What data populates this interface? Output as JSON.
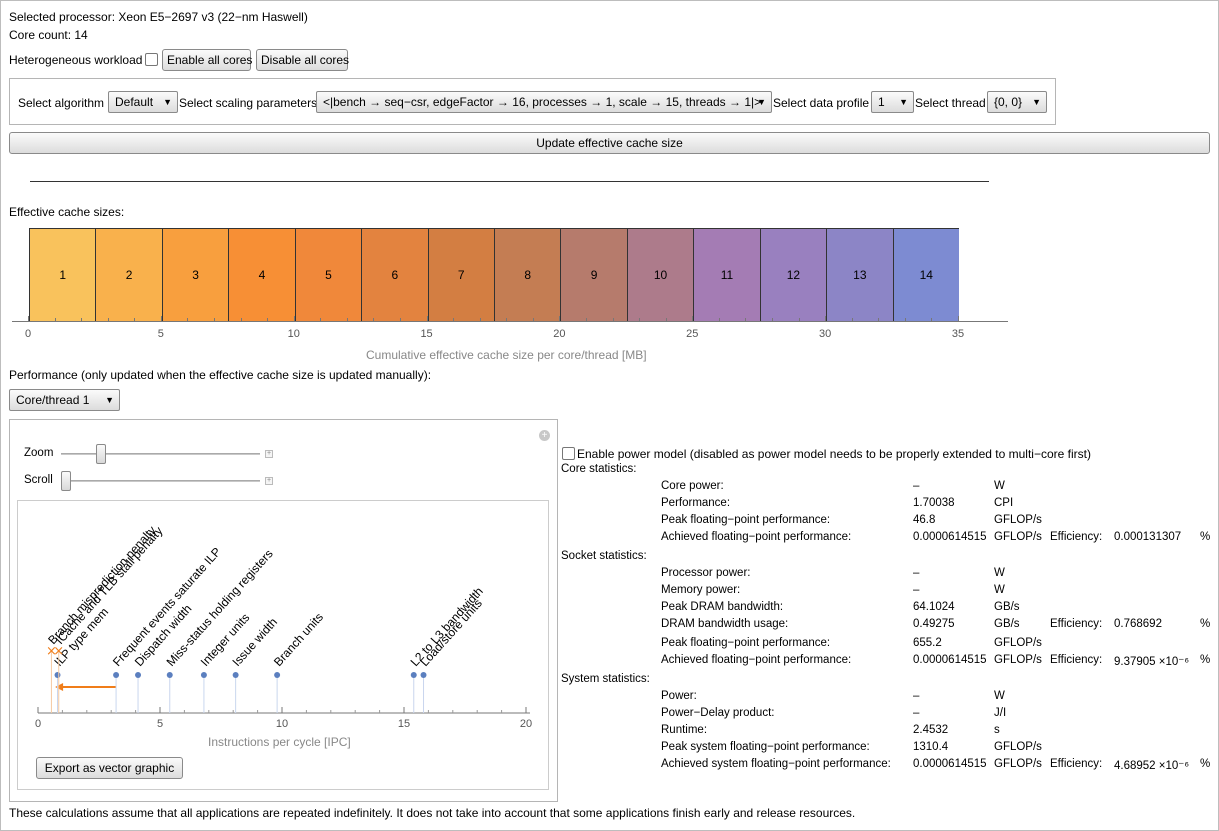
{
  "header": {
    "processor": "Selected processor: Xeon E5−2697 v3 (22−nm Haswell)",
    "core_count": "Core count: 14"
  },
  "workload": {
    "hetero_label": "Heterogeneous workload",
    "enable_all": "Enable all cores",
    "disable_all": "Disable all cores"
  },
  "selectors": {
    "algorithm_label": "Select algorithm",
    "algorithm_value": "Default",
    "scaling_label": "Select scaling parameters",
    "scaling_value": "<|bench → seq−csr, edgeFactor → 16, processes → 1, scale → 15, threads → 1|>",
    "profile_label": "Select data profile",
    "profile_value": "1",
    "thread_label": "Select thread",
    "thread_value": "{0, 0}"
  },
  "update_button": "Update effective cache size",
  "cache": {
    "title": "Effective cache sizes:",
    "xlabel": "Cumulative effective cache size per core/thread [MB]",
    "ticks": [
      "0",
      "5",
      "10",
      "15",
      "20",
      "25",
      "30",
      "35"
    ],
    "segments": [
      {
        "label": "1",
        "color": "#f9c25c"
      },
      {
        "label": "2",
        "color": "#f9b14c"
      },
      {
        "label": "3",
        "color": "#f89f3e"
      },
      {
        "label": "4",
        "color": "#f78f35"
      },
      {
        "label": "5",
        "color": "#f0883a"
      },
      {
        "label": "6",
        "color": "#e3833f"
      },
      {
        "label": "7",
        "color": "#d37e42"
      },
      {
        "label": "8",
        "color": "#c47d53"
      },
      {
        "label": "9",
        "color": "#b67b6c"
      },
      {
        "label": "10",
        "color": "#ad7b8b"
      },
      {
        "label": "11",
        "color": "#a47cb4"
      },
      {
        "label": "12",
        "color": "#9980bf"
      },
      {
        "label": "13",
        "color": "#8c85c6"
      },
      {
        "label": "14",
        "color": "#7d8bd2"
      }
    ]
  },
  "performance": {
    "title": "Performance (only updated when the effective cache size is updated manually):",
    "core_select": "Core/thread 1",
    "zoom_label": "Zoom",
    "scroll_label": "Scroll",
    "export_button": "Export as vector graphic"
  },
  "chart_data": {
    "type": "scatter",
    "xlabel": "Instructions per cycle [IPC]",
    "xlim": [
      0,
      20
    ],
    "ticks": [
      "0",
      "5",
      "10",
      "15",
      "20"
    ],
    "points": [
      {
        "x": 0.8,
        "label": "ILP type mem"
      },
      {
        "x": 3.2,
        "label": "Frequent events saturate ILP"
      },
      {
        "x": 4.1,
        "label": "Dispatch width"
      },
      {
        "x": 5.4,
        "label": "Miss-status holding registers"
      },
      {
        "x": 6.8,
        "label": "Integer units"
      },
      {
        "x": 8.1,
        "label": "Issue width"
      },
      {
        "x": 9.8,
        "label": "Branch units"
      },
      {
        "x": 15.4,
        "label": "L2 to L3 bandwidth"
      },
      {
        "x": 15.8,
        "label": "Load/store units"
      }
    ],
    "markers": [
      {
        "x": 0.55,
        "label": "Branch misprediction penalty"
      },
      {
        "x": 0.85,
        "label": "ICache and TLB stall penalty"
      }
    ],
    "arrow": {
      "from": 3.2,
      "to": 0.7
    },
    "colors": {
      "point": "#5b7fbf",
      "marker": "#f07d19"
    }
  },
  "power": {
    "checkbox_label": "Enable power model (disabled as power model needs to be properly extended to multi−core first)"
  },
  "stats": {
    "core_title": "Core statistics:",
    "socket_title": "Socket statistics:",
    "system_title": "System statistics:",
    "core": [
      {
        "name": "Core power:",
        "value": "–",
        "unit": "W"
      },
      {
        "name": "Performance:",
        "value": "1.70038",
        "unit": "CPI"
      },
      {
        "name": "Peak floating−point performance:",
        "value": "46.8",
        "unit": "GFLOP/s"
      },
      {
        "name": "Achieved floating−point performance:",
        "value": "0.0000614515",
        "unit": "GFLOP/s",
        "eff_label": "Efficiency:",
        "eff": "0.000131307",
        "pct": "%"
      }
    ],
    "socket": [
      {
        "name": "Processor power:",
        "value": "–",
        "unit": "W"
      },
      {
        "name": "Memory power:",
        "value": "–",
        "unit": "W"
      },
      {
        "name": "Peak DRAM bandwidth:",
        "value": "64.1024",
        "unit": "GB/s"
      },
      {
        "name": "DRAM bandwidth usage:",
        "value": "0.49275",
        "unit": "GB/s",
        "eff_label": "Efficiency:",
        "eff": "0.768692",
        "pct": "%"
      },
      {
        "name": "Peak floating−point performance:",
        "value": "655.2",
        "unit": "GFLOP/s"
      },
      {
        "name": "Achieved floating−point performance:",
        "value": "0.0000614515",
        "unit": "GFLOP/s",
        "eff_label": "Efficiency:",
        "eff": "9.37905 ×10⁻⁶",
        "pct": "%"
      }
    ],
    "system": [
      {
        "name": "Power:",
        "value": "–",
        "unit": "W"
      },
      {
        "name": "Power−Delay product:",
        "value": "–",
        "unit": "J/I"
      },
      {
        "name": "Runtime:",
        "value": "2.4532",
        "unit": "s"
      },
      {
        "name": "Peak system floating−point performance:",
        "value": "1310.4",
        "unit": "GFLOP/s"
      },
      {
        "name": "Achieved system floating−point performance:",
        "value": "0.0000614515",
        "unit": "GFLOP/s",
        "eff_label": "Efficiency:",
        "eff": "4.68952 ×10⁻⁶",
        "pct": "%"
      }
    ]
  },
  "footer": "These calculations assume that all applications are repeated indefinitely. It does not take into account that some applications finish early and release resources."
}
